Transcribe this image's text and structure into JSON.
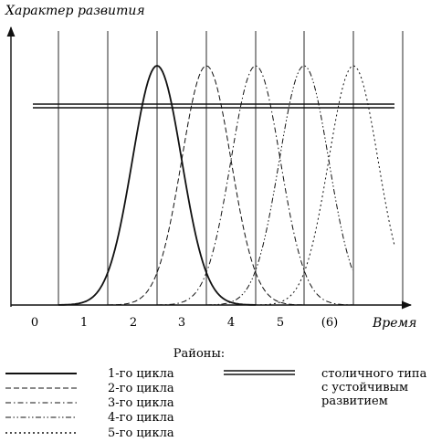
{
  "diagram": {
    "y_axis_label": "Характер развития",
    "x_axis_label": "Время",
    "x_ticks": [
      "0",
      "1",
      "2",
      "3",
      "4",
      "5",
      "(6)"
    ],
    "vertical_line_count": 8,
    "curves": [
      {
        "name": "1-го цикла",
        "style": "solid"
      },
      {
        "name": "2-го цикла",
        "style": "dashed"
      },
      {
        "name": "3-го цикла",
        "style": "dash-dot"
      },
      {
        "name": "4-го цикла",
        "style": "dash-dot-dot"
      },
      {
        "name": "5-го цикла",
        "style": "dotted"
      }
    ],
    "stable_line": {
      "style": "double"
    }
  },
  "legend": {
    "title": "Районы:",
    "items": [
      {
        "label": "1-го цикла",
        "style": "solid"
      },
      {
        "label": "2-го цикла",
        "style": "dashed"
      },
      {
        "label": "3-го цикла",
        "style": "dash-dot"
      },
      {
        "label": "4-го цикла",
        "style": "dash-dot-dot"
      },
      {
        "label": "5-го цикла",
        "style": "dotted"
      }
    ],
    "capital_lines": [
      "столичного типа",
      "с устойчивым",
      "развитием"
    ]
  }
}
